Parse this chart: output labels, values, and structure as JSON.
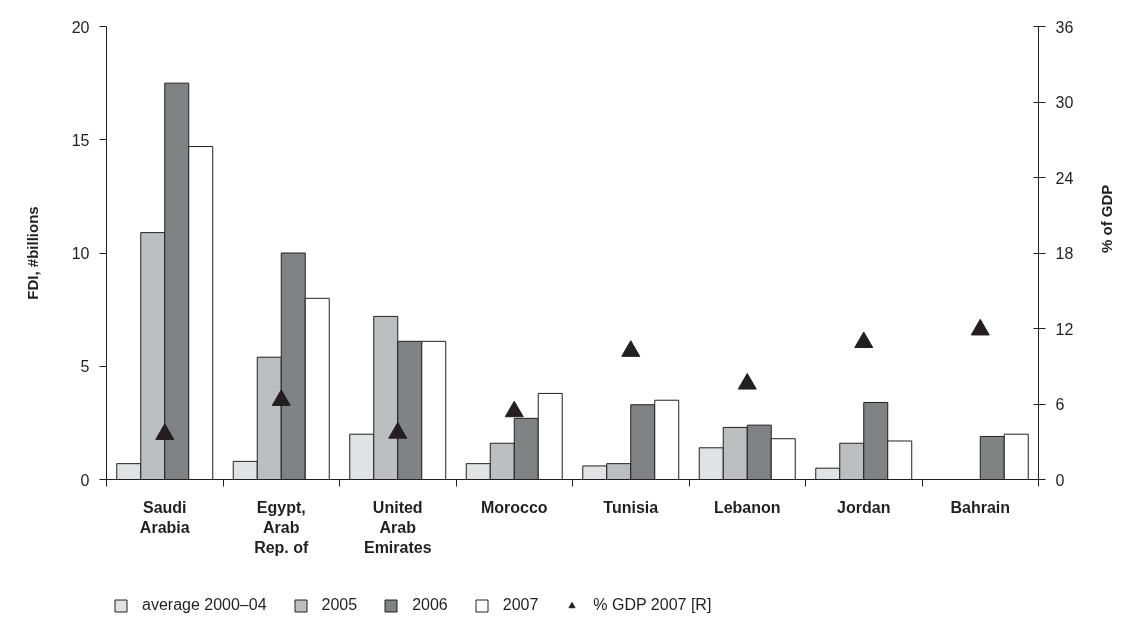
{
  "chart_data": {
    "type": "bar",
    "ylabel": "FDI, #billions",
    "y2label": "% of GDP",
    "categories": [
      "Saudi Arabia",
      "Egypt, Arab Rep. of",
      "United Arab Emirates",
      "Morocco",
      "Tunisia",
      "Lebanon",
      "Jordan",
      "Bahrain"
    ],
    "series": [
      {
        "name": "average 2000–04",
        "color": "#e1e2e4",
        "values": [
          0.7,
          0.8,
          2.0,
          0.7,
          0.6,
          1.4,
          0.5,
          null
        ]
      },
      {
        "name": "2005",
        "color": "#bdbec0",
        "values": [
          10.9,
          5.4,
          7.2,
          1.6,
          0.7,
          2.3,
          1.6,
          null
        ]
      },
      {
        "name": "2006",
        "color": "#808284",
        "values": [
          17.5,
          10.0,
          6.1,
          2.7,
          3.3,
          2.4,
          3.4,
          1.9
        ]
      },
      {
        "name": "2007",
        "color": "#ffffff",
        "values": [
          14.7,
          8.0,
          6.1,
          3.8,
          3.5,
          1.8,
          1.7,
          2.0
        ]
      },
      {
        "name": "% GDP 2007 [R]",
        "type": "scatter",
        "axis": "y2",
        "marker": "triangle",
        "color": "#231f20",
        "values": [
          3.6,
          6.3,
          3.7,
          5.4,
          10.2,
          7.6,
          10.9,
          11.9
        ]
      }
    ],
    "ylim": [
      0,
      20
    ],
    "yticks": [
      0,
      5,
      10,
      15,
      20
    ],
    "y2lim": [
      0,
      36
    ],
    "y2ticks": [
      0,
      6,
      12,
      18,
      24,
      30,
      36
    ],
    "grid": false,
    "legend": "bottom"
  }
}
